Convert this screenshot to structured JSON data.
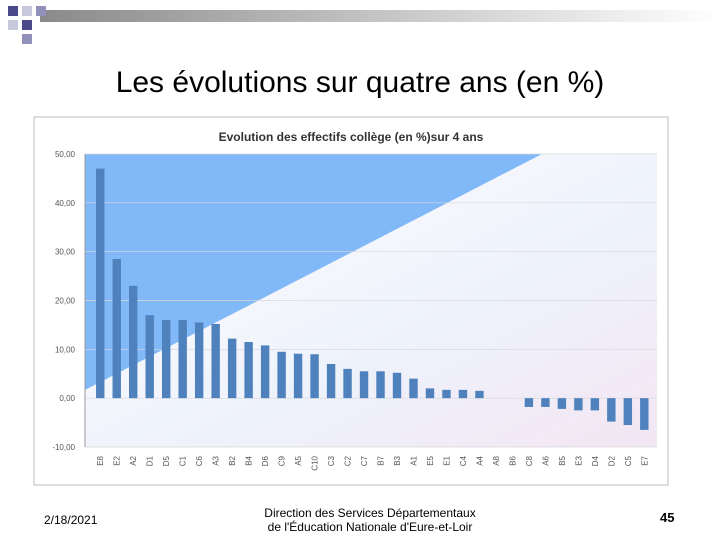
{
  "slide": {
    "title": "Les évolutions sur quatre ans (en %)",
    "date": "2/18/2021",
    "footer": [
      "Direction des Services Départementaux",
      "de l'Éducation Nationale d'Eure-et-Loir"
    ],
    "page": "45"
  },
  "chart_data": {
    "type": "bar",
    "title": "Evolution des effectifs collège (en %)sur  4 ans",
    "categories": [
      "E8",
      "E2",
      "A2",
      "D1",
      "D5",
      "C1",
      "C6",
      "A3",
      "B2",
      "B4",
      "D6",
      "C9",
      "A5",
      "C10",
      "C3",
      "C2",
      "C7",
      "B7",
      "B3",
      "A1",
      "E5",
      "E1",
      "C4",
      "A4",
      "A8",
      "B6",
      "C8",
      "A6",
      "B5",
      "E3",
      "D4",
      "D2",
      "C5",
      "E7"
    ],
    "values": [
      47,
      28.5,
      23,
      17,
      16,
      16,
      15.5,
      15.2,
      12.2,
      11.5,
      10.8,
      9.5,
      9.1,
      9,
      7,
      6,
      5.5,
      5.5,
      5.2,
      4,
      2,
      1.7,
      1.7,
      1.5,
      0,
      0,
      -1.8,
      -1.8,
      -2.2,
      -2.5,
      -2.5,
      -4.8,
      -5.5,
      -6.5
    ],
    "color": "#4f81bd",
    "ylim": [
      -10,
      50
    ],
    "yticks": [
      {
        "value": -10,
        "label": "-10,00"
      },
      {
        "value": 0,
        "label": "0,00"
      },
      {
        "value": 10,
        "label": "10,00"
      },
      {
        "value": 20,
        "label": "20,00"
      },
      {
        "value": 30,
        "label": "30,00"
      },
      {
        "value": 40,
        "label": "40,00"
      },
      {
        "value": 50,
        "label": "50,00"
      }
    ],
    "grid": true
  }
}
